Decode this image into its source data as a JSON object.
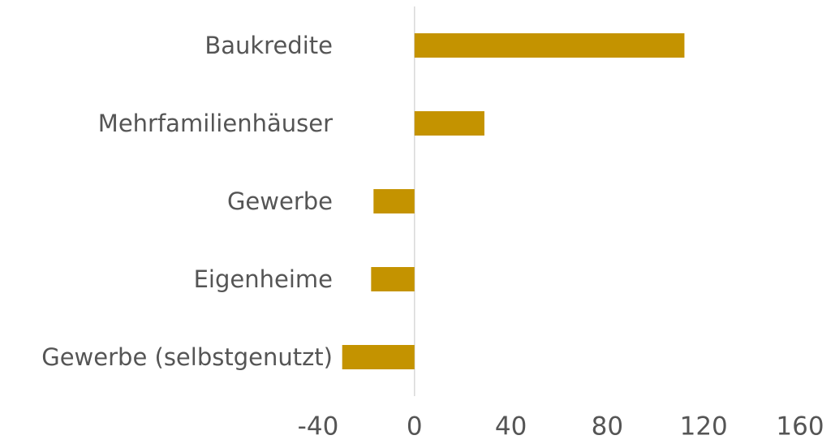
{
  "chart_data": {
    "type": "barh",
    "categories": [
      "Baukredite",
      "Mehrfamilienhäuser",
      "Gewerbe",
      "Eigenheime",
      "Gewerbe (selbstgenutzt)"
    ],
    "values": [
      112,
      29,
      -17,
      -18,
      -30
    ],
    "color": "#c49300",
    "xlim": [
      -40,
      160
    ],
    "xticks": [
      -40,
      0,
      40,
      80,
      120,
      160
    ],
    "grid": false
  }
}
